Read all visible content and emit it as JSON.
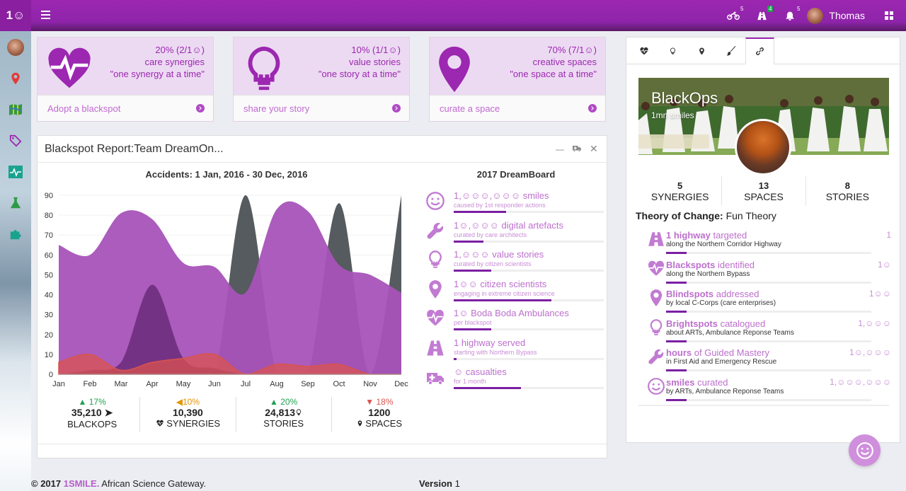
{
  "app": {
    "logo": "1☺",
    "user_name": "Thomas"
  },
  "topbar": {
    "notifications": [
      {
        "icon": "motorbike-icon",
        "count": "5"
      },
      {
        "icon": "road-icon",
        "count": "4"
      },
      {
        "icon": "bell-icon",
        "count": "5"
      }
    ]
  },
  "sidebar": {
    "items": [
      "avatar",
      "map-marker-icon",
      "map-icon",
      "tag-icon",
      "pulse-icon",
      "flask-icon",
      "puzzle-icon"
    ]
  },
  "cards": [
    {
      "pct": "20% (2/1☺)",
      "line2": "care synergies",
      "line3": "\"one synergy at a time\"",
      "action": "Adopt a blackspot",
      "icon": "heartbeat-icon"
    },
    {
      "pct": "10% (1/1☺)",
      "line2": "value stories",
      "line3": "\"one story at a time\"",
      "action": "share your story",
      "icon": "lightbulb-icon"
    },
    {
      "pct": "70% (7/1☺)",
      "line2": "creative spaces",
      "line3": "\"one space at a time\"",
      "action": "curate a space",
      "icon": "map-marker-icon"
    }
  ],
  "report": {
    "title": "Blackspot Report:Team DreamOn...",
    "chart_title": "Accidents: 1 Jan, 2016 - 30 Dec, 2016",
    "stats": [
      {
        "pct": "17%",
        "dir": "up",
        "value": "35,210",
        "label": "BLACKOPS",
        "icon": "paper-plane-icon"
      },
      {
        "pct": "10%",
        "dir": "warn",
        "value": "10,390",
        "label": "SYNERGIES",
        "icon": "heartbeat-icon"
      },
      {
        "pct": "20%",
        "dir": "up",
        "value": "24,813",
        "label": "STORIES",
        "icon": "lightbulb-icon"
      },
      {
        "pct": "18%",
        "dir": "down",
        "value": "1200",
        "label": "SPACES",
        "icon": "map-marker-icon"
      }
    ]
  },
  "chart_data": {
    "type": "area",
    "title": "Accidents: 1 Jan, 2016 - 30 Dec, 2016",
    "categories": [
      "Jan",
      "Feb",
      "Mar",
      "Apr",
      "May",
      "Jun",
      "Jul",
      "Aug",
      "Sep",
      "Oct",
      "Nov",
      "Dec"
    ],
    "ylim": [
      0,
      90
    ],
    "yticks": [
      0,
      10,
      20,
      30,
      40,
      50,
      60,
      70,
      80,
      90
    ],
    "series": [
      {
        "name": "series-1",
        "color": "#a653b8",
        "values": [
          65,
          60,
          81,
          78,
          56,
          54,
          41,
          83,
          82,
          55,
          50,
          41
        ]
      },
      {
        "name": "series-2",
        "color": "#3f4449",
        "values": [
          0,
          0,
          0,
          0,
          0,
          0,
          90,
          0,
          0,
          86,
          0,
          90
        ]
      },
      {
        "name": "series-3",
        "color": "#6a2a7a",
        "values": [
          0,
          2,
          6,
          45,
          8,
          3,
          0,
          0,
          0,
          0,
          0,
          0
        ]
      },
      {
        "name": "series-4",
        "color": "#d9534f",
        "values": [
          6,
          10,
          2,
          6,
          8,
          10,
          0,
          5,
          4,
          5,
          0,
          0
        ]
      }
    ]
  },
  "dreamboard": {
    "title": "2017 DreamBoard",
    "items": [
      {
        "title": "1,☺☺☺,☺☺☺ smiles",
        "sub": "caused by 1st responder actions",
        "progress": 0.35,
        "icon": "smile-icon"
      },
      {
        "title": "1☺,☺☺☺ digital artefacts",
        "sub": "curated by care architects",
        "progress": 0.2,
        "icon": "wrench-icon"
      },
      {
        "title": "1,☺☺☺ value stories",
        "sub": "curated by citizen scientists",
        "progress": 0.25,
        "icon": "lightbulb-icon"
      },
      {
        "title": "1☺☺ citizen scientists",
        "sub": "engaging in extreme citizen science",
        "progress": 0.65,
        "icon": "map-marker-icon"
      },
      {
        "title": "1☺ Boda Boda Ambulances",
        "sub": "per blackspot",
        "progress": 0.25,
        "icon": "heartbeat-icon"
      },
      {
        "title": "1 highway served",
        "sub": "starting with Northern Bypass",
        "progress": 0.02,
        "icon": "road-icon"
      },
      {
        "title": "☺ casualties",
        "sub": "for 1 month",
        "progress": 0.45,
        "icon": "ambulance-icon"
      }
    ]
  },
  "profile": {
    "tabs": [
      "heartbeat-icon",
      "lightbulb-icon",
      "map-marker-icon",
      "brush-icon",
      "link-icon"
    ],
    "name": "BlackOps",
    "subtitle": "1mn smiles",
    "counts": [
      {
        "value": "5",
        "label": "SYNERGIES"
      },
      {
        "value": "13",
        "label": "SPACES"
      },
      {
        "value": "8",
        "label": "STORIES"
      }
    ],
    "theory_label": "Theory of Change:",
    "theory_value": "Fun Theory",
    "goals": [
      {
        "bold": "1 highway",
        "rest": "targeted",
        "sub": "along the Northern Corridor Highway",
        "value": "1",
        "progress": 0.1,
        "icon": "road-icon"
      },
      {
        "bold": "Blackspots",
        "rest": "identified",
        "sub": "along the Northern Bypass",
        "value": "1☺",
        "progress": 0.1,
        "icon": "heartbeat-icon"
      },
      {
        "bold": "Blindspots",
        "rest": "addressed",
        "sub": "by local C-Corps (care enterprises)",
        "value": "1☺☺",
        "progress": 0.1,
        "icon": "map-marker-icon"
      },
      {
        "bold": "Brightspots",
        "rest": "catalogued",
        "sub": "about ARTs, Ambulance Reponse Teams",
        "value": "1,☺☺☺",
        "progress": 0.1,
        "icon": "lightbulb-icon"
      },
      {
        "bold": "hours",
        "rest": "of Guided Mastery",
        "sub": "in First Aid and Emergency Rescue",
        "value": "1☺,☺☺☺",
        "progress": 0.1,
        "icon": "wrench-icon"
      },
      {
        "bold": "smiles",
        "rest": "curated",
        "sub": "by ARTs, Ambulance Reponse Teams",
        "value": "1,☺☺☺,☺☺☺",
        "progress": 0.1,
        "icon": "smile-icon"
      }
    ]
  },
  "footer": {
    "copyright": "© 2017",
    "brand": "1SMILE.",
    "tagline": "African Science Gateway.",
    "version_label": "Version",
    "version": "1"
  }
}
